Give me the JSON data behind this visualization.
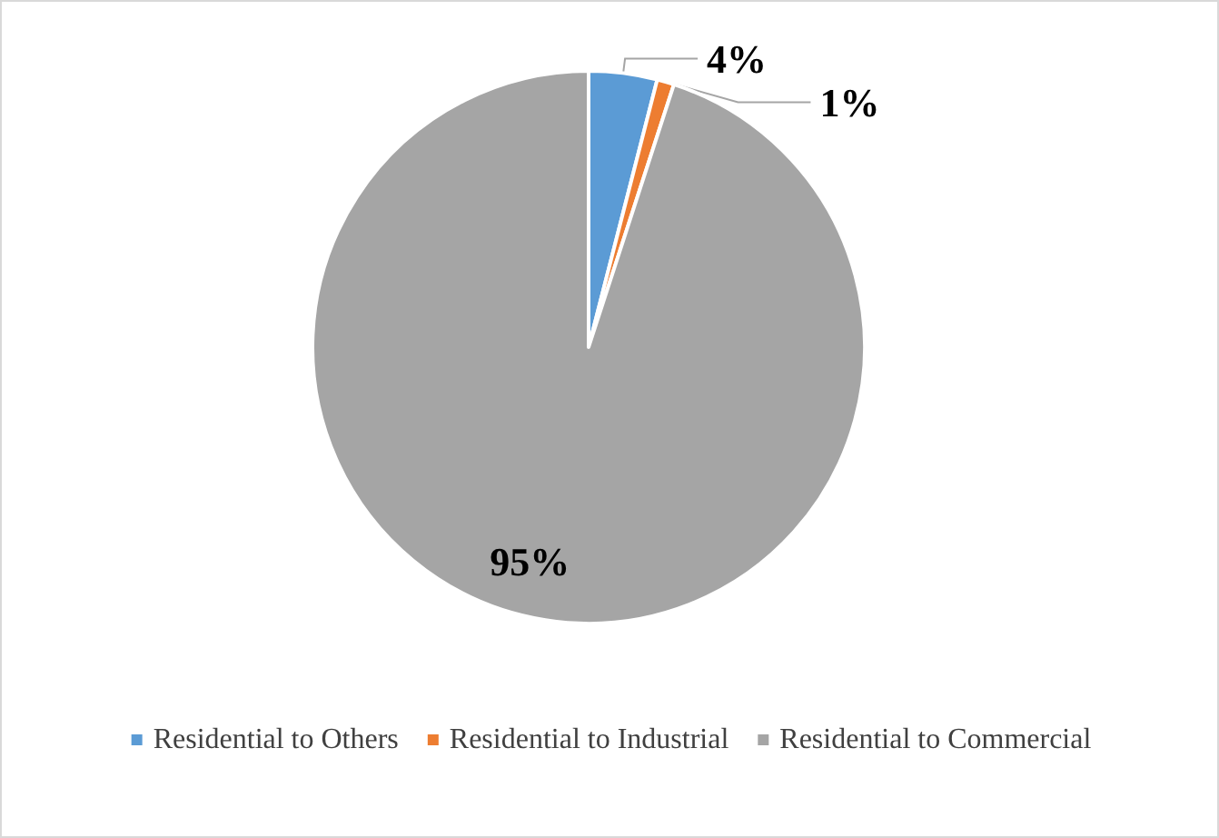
{
  "chart_data": {
    "type": "pie",
    "categories": [
      "Residential to Others",
      "Residential to Industrial",
      "Residential to Commercial"
    ],
    "values": [
      4,
      1,
      95
    ],
    "colors": [
      "#5b9bd5",
      "#ed7d31",
      "#a5a5a5"
    ],
    "value_labels": [
      "4%",
      "1%",
      "95%"
    ],
    "legend": "bottom"
  }
}
